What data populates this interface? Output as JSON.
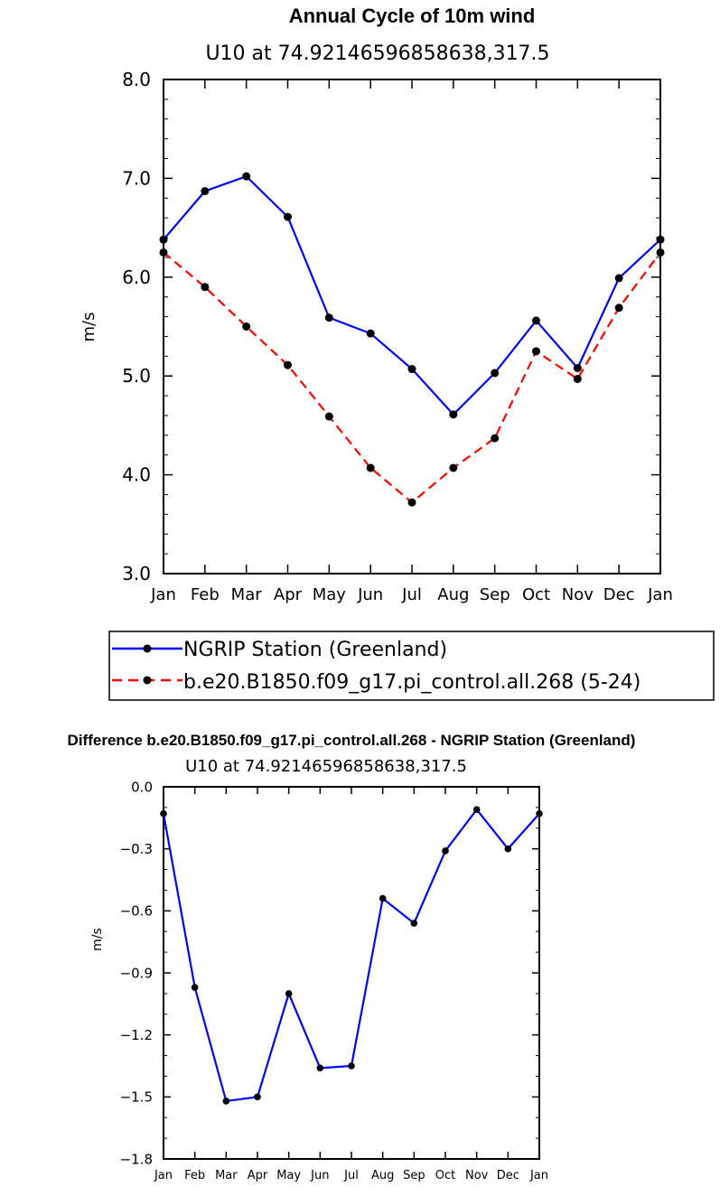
{
  "chart_data": [
    {
      "type": "line",
      "title": "Annual Cycle of 10m wind",
      "subtitle": "U10 at 74.92146596858638,317.5",
      "xlabel": "",
      "ylabel": "m/s",
      "categories": [
        "Jan",
        "Feb",
        "Mar",
        "Apr",
        "May",
        "Jun",
        "Jul",
        "Aug",
        "Sep",
        "Oct",
        "Nov",
        "Dec",
        "Jan"
      ],
      "ylim": [
        3.0,
        8.0
      ],
      "yticks": [
        "3.0",
        "4.0",
        "5.0",
        "6.0",
        "7.0",
        "8.0"
      ],
      "series": [
        {
          "name": "NGRIP Station (Greenland)",
          "color": "#0000ff",
          "dash": "solid",
          "values": [
            6.38,
            6.87,
            7.02,
            6.61,
            5.59,
            5.43,
            5.07,
            4.61,
            5.03,
            5.56,
            5.08,
            5.99,
            6.38
          ]
        },
        {
          "name": "b.e20.B1850.f09_g17.pi_control.all.268 (5-24)",
          "color": "#ff0000",
          "dash": "dashed",
          "values": [
            6.25,
            5.9,
            5.5,
            5.11,
            4.59,
            4.07,
            3.72,
            4.07,
            4.37,
            5.25,
            4.97,
            5.69,
            6.25
          ]
        }
      ],
      "legend": "bottom"
    },
    {
      "type": "line",
      "title": "Difference b.e20.B1850.f09_g17.pi_control.all.268 - NGRIP Station (Greenland)",
      "subtitle": "U10 at 74.92146596858638,317.5",
      "xlabel": "",
      "ylabel": "m/s",
      "categories": [
        "Jan",
        "Feb",
        "Mar",
        "Apr",
        "May",
        "Jun",
        "Jul",
        "Aug",
        "Sep",
        "Oct",
        "Nov",
        "Dec",
        "Jan"
      ],
      "ylim": [
        -1.8,
        0.0
      ],
      "yticks": [
        "−1.8",
        "−1.5",
        "−1.2",
        "−0.9",
        "−0.6",
        "−0.3",
        "0.0"
      ],
      "series": [
        {
          "name": "Difference",
          "color": "#0000ff",
          "dash": "solid",
          "values": [
            -0.13,
            -0.97,
            -1.52,
            -1.5,
            -1.0,
            -1.36,
            -1.35,
            -0.54,
            -0.66,
            -0.31,
            -0.11,
            -0.3,
            -0.13
          ]
        }
      ]
    }
  ]
}
